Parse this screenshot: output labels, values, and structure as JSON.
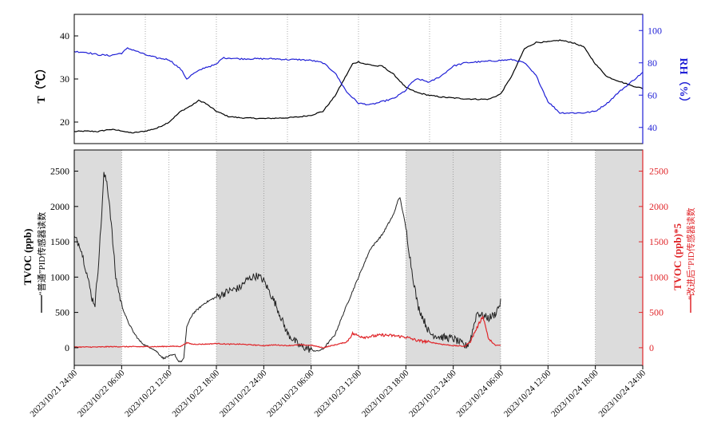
{
  "colors": {
    "temperature": "#000000",
    "humidity": "#1f1fd6",
    "tvoc_ordinary": "#222222",
    "tvoc_improved": "#e0262a",
    "shade": "#dcdcdc"
  },
  "chart_data": [
    {
      "type": "line",
      "panel": "top",
      "ylabel_left": "T（℃）",
      "ylabel_right": "RH（%）",
      "ylim_left": [
        15,
        45
      ],
      "yticks_left": [
        20,
        30,
        40
      ],
      "ylim_right": [
        30,
        110
      ],
      "yticks_right": [
        40,
        60,
        80,
        100
      ],
      "grid": "vertical dotted at major x ticks",
      "series": [
        {
          "axis": "left",
          "x": [
            0,
            2,
            4,
            6,
            8,
            9,
            10,
            12,
            14,
            16,
            18,
            20,
            21,
            22,
            24,
            26,
            28,
            30,
            32,
            34,
            36,
            38,
            40,
            42,
            44,
            46,
            47,
            48,
            49,
            50,
            51,
            52,
            54,
            56,
            58,
            60,
            62,
            64,
            66,
            68,
            70,
            72,
            74,
            76,
            78,
            80,
            82,
            84,
            86,
            88,
            90,
            92,
            94,
            96
          ],
          "values": [
            17.8,
            17.9,
            17.8,
            18.3,
            18.0,
            17.6,
            17.5,
            17.9,
            18.6,
            20.0,
            22.5,
            24.0,
            25.0,
            24.5,
            22.5,
            21.3,
            21.0,
            20.9,
            20.8,
            20.9,
            21.0,
            21.2,
            21.6,
            22.5,
            26.0,
            31.0,
            33.5,
            34.0,
            33.5,
            33.3,
            33.0,
            33.0,
            31.0,
            28.0,
            26.8,
            26.2,
            25.8,
            25.6,
            25.4,
            25.3,
            25.3,
            26.5,
            31.0,
            37.0,
            38.5,
            38.6,
            39.0,
            38.5,
            37.5,
            33.5,
            30.5,
            29.5,
            28.5,
            27.8
          ]
        },
        {
          "axis": "right",
          "x": [
            0,
            2,
            4,
            6,
            8,
            9,
            10,
            12,
            14,
            16,
            18,
            19,
            20,
            22,
            24,
            25,
            26,
            28,
            30,
            32,
            34,
            36,
            38,
            40,
            42,
            44,
            46,
            48,
            50,
            52,
            54,
            56,
            57,
            58,
            60,
            62,
            64,
            66,
            68,
            70,
            72,
            74,
            76,
            78,
            80,
            82,
            84,
            86,
            88,
            90,
            92,
            94,
            96
          ],
          "values": [
            87,
            86.5,
            85,
            84.5,
            86,
            89,
            88,
            85,
            83,
            82,
            76,
            70,
            73,
            77,
            79,
            83,
            83,
            82.5,
            82.5,
            82.5,
            82.5,
            82,
            82,
            81.5,
            80,
            74,
            62,
            55,
            54,
            56,
            58,
            63,
            68,
            70,
            68,
            72,
            78,
            80,
            80.5,
            81,
            81.5,
            82,
            80,
            72,
            56,
            49,
            49,
            49,
            50,
            55,
            62,
            68,
            74
          ]
        }
      ]
    },
    {
      "type": "line",
      "panel": "bottom",
      "ylabel_left": "TVOC (ppb)",
      "legend_left": "“普通”PID传感器读数",
      "ylabel_right": "TVOC (ppb)*5",
      "legend_right": "“改进后”PID传感器读数",
      "ylim_left": [
        -250,
        2800
      ],
      "yticks_left": [
        0,
        500,
        1000,
        1500,
        2000,
        2500
      ],
      "ylim_right": [
        -250,
        2800
      ],
      "yticks_right": [
        0,
        500,
        1000,
        1500,
        2000,
        2500
      ],
      "x_tick_labels": [
        "2023/10/21 24:00",
        "2023/10/22 06:00",
        "2023/10/22 12:00",
        "2023/10/22 18:00",
        "2023/10/22 24:00",
        "2023/10/23 06:00",
        "2023/10/23 12:00",
        "2023/10/23 18:00",
        "2023/10/23 24:00",
        "2023/10/24 06:00",
        "2023/10/24 12:00",
        "2023/10/24 18:00",
        "2023/10/24 24:00"
      ],
      "x_tick_hours": [
        0,
        6,
        12,
        18,
        24,
        30,
        36,
        42,
        48,
        54,
        60,
        66,
        72
      ],
      "xlim_hours": [
        0,
        72
      ],
      "shaded_hours": [
        [
          0,
          6
        ],
        [
          18,
          30
        ],
        [
          42,
          54
        ],
        [
          66,
          72
        ]
      ],
      "series": [
        {
          "axis": "left",
          "x": [
            0,
            1,
            2,
            2.5,
            3,
            3.5,
            4,
            4.5,
            5,
            5.5,
            6,
            6.5,
            7,
            8,
            9,
            10,
            11,
            12,
            13,
            14,
            15,
            16,
            17,
            17.5,
            18,
            18.5,
            19,
            20,
            22,
            24,
            26,
            28,
            29,
            30,
            31,
            32,
            34,
            36,
            38,
            40,
            41,
            42,
            43,
            44,
            46,
            48,
            50,
            52,
            54,
            54.5,
            55,
            56,
            57,
            58,
            60,
            62,
            64,
            65,
            66,
            66.5,
            67,
            68,
            69,
            70,
            71,
            72
          ],
          "values": [
            1560,
            1450,
            1100,
            900,
            700,
            620,
            1100,
            1700,
            2450,
            2350,
            2000,
            1500,
            1000,
            600,
            380,
            220,
            100,
            30,
            0,
            -60,
            -150,
            -120,
            -100,
            -180,
            -200,
            -150,
            300,
            480,
            630,
            720,
            800,
            850,
            950,
            1000,
            1020,
            950,
            620,
            200,
            30,
            -30,
            -50,
            -20,
            80,
            180,
            600,
            1000,
            1400,
            1600,
            1900,
            2050,
            2130,
            1700,
            1100,
            600,
            200,
            150,
            130,
            80,
            20,
            50,
            150,
            500,
            450,
            420,
            470,
            640
          ]
        },
        {
          "axis": "right",
          "x": [
            0,
            2,
            4,
            6,
            8,
            10,
            12,
            14,
            16,
            18,
            19,
            20,
            22,
            24,
            26,
            28,
            30,
            32,
            34,
            36,
            38,
            40,
            42,
            44,
            46,
            47,
            48,
            49,
            50,
            52,
            54,
            56,
            58,
            60,
            62,
            64,
            66,
            67,
            67.5,
            68,
            69,
            70,
            71,
            72
          ],
          "values": [
            10,
            10,
            10,
            15,
            15,
            15,
            15,
            15,
            20,
            20,
            70,
            50,
            50,
            60,
            50,
            50,
            40,
            30,
            40,
            30,
            40,
            35,
            0,
            40,
            80,
            200,
            170,
            150,
            160,
            180,
            170,
            150,
            100,
            80,
            50,
            30,
            20,
            100,
            200,
            280,
            450,
            120,
            40,
            30
          ]
        }
      ]
    }
  ]
}
